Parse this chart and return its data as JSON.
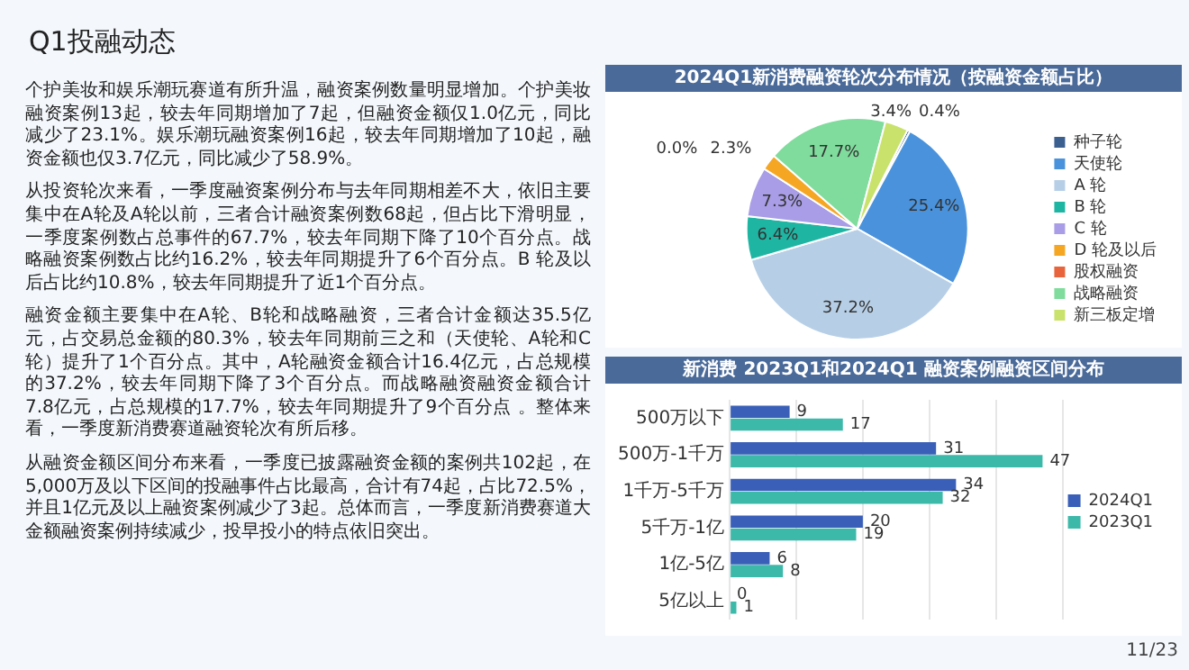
{
  "chart_data": [
    {
      "type": "other",
      "title": "Q1投融动态",
      "annotations": [
        "个护美妆和娱乐潮玩赛道有所升温，融资案例数量明显增加。个护美妆融资案例13起，较去年同期增加了7起，但融资金额仅1.0亿元，同比减少了23.1%。娱乐潮玩融资案例16起，较去年同期增加了10起，融资金额也仅3.7亿元，同比减少了58.9%。",
        "从投资轮次来看，一季度融资案例分布与去年同期相差不大，依旧主要集中在A轮及A轮以前，三者合计融资案例数68起，但占比下滑明显，一季度案例数占总事件的67.7%，较去年同期下降了10个百分点。战略融资案例数占比约16.2%，较去年同期提升了6个百分点。B 轮及以后占比约10.8%，较去年同期提升了近1个百分点。",
        "融资金额主要集中在A轮、B轮和战略融资，三者合计金额达35.5亿元，占交易总金额的80.3%，较去年同期前三之和（天使轮、A轮和C轮）提升了1个百分点。其中，A轮融资金额合计16.4亿元，占总规模的37.2%，较去年同期下降了3个百分点。而战略融资融资金额合计7.8亿元，占总规模的17.7%，较去年同期提升了9个百分点 。整体来看，一季度新消费赛道融资轮次有所后移。",
        "从融资金额区间分布来看，一季度已披露融资金额的案例共102起，在5,000万及以下区间的投融事件占比最高，合计有74起，占比72.5%，并且1亿元及以上融资案例减少了3起。总体而言，一季度新消费赛道大金额融资案例持续减少，投早投小的特点依旧突出。",
        "11/23"
      ]
    },
    {
      "type": "pie",
      "title": "2024Q1新消费融资轮次分布情况（按融资金额占比）",
      "categories": [
        "种子轮",
        "天使轮",
        "A 轮",
        "B 轮",
        "C 轮",
        "D 轮及以后",
        "股权融资",
        "战略融资",
        "新三板定增"
      ],
      "values": [
        0.4,
        25.4,
        37.2,
        6.4,
        7.3,
        2.3,
        0.0,
        17.7,
        3.4
      ],
      "colors": [
        "#3b5f8f",
        "#4a93dc",
        "#b7cfe6",
        "#1fb5a3",
        "#a89de6",
        "#f5a623",
        "#e8643c",
        "#7fdc9c",
        "#c9e26c"
      ],
      "value_labels": [
        "0.4%",
        "25.4%",
        "37.2%",
        "6.4%",
        "7.3%",
        "2.3%",
        "0.0%",
        "17.7%",
        "3.4%"
      ],
      "legend": "right"
    },
    {
      "type": "bar",
      "orientation": "horizontal",
      "title": "新消费 2023Q1和2024Q1 融资案例融资区间分布",
      "categories": [
        "500万以下",
        "500万-1千万",
        "1千万-5千万",
        "5千万-1亿",
        "1亿-5亿",
        "5亿以上"
      ],
      "series": [
        {
          "name": "2024Q1",
          "color": "#3a5fb8",
          "values": [
            9,
            31,
            34,
            20,
            6,
            0
          ]
        },
        {
          "name": "2023Q1",
          "color": "#3db9aa",
          "values": [
            17,
            47,
            32,
            19,
            8,
            1
          ]
        }
      ],
      "xlim": [
        0,
        50
      ],
      "xticks": [
        {
          "value": 0,
          "label": null
        },
        {
          "value": 10,
          "label": null
        },
        {
          "value": 20,
          "label": null
        },
        {
          "value": 30,
          "label": null
        },
        {
          "value": 40,
          "label": null
        },
        {
          "value": 50,
          "label": null
        }
      ],
      "grid": "x",
      "tick_labels": "y",
      "data_labels": true,
      "legend": "right"
    }
  ]
}
